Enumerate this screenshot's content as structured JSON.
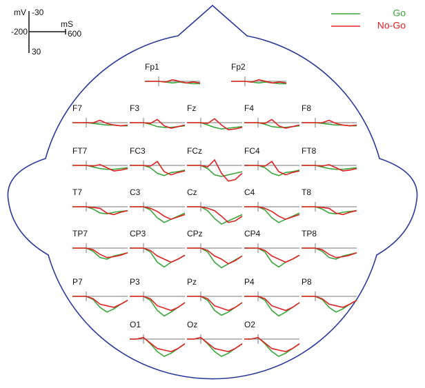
{
  "chart_data": {
    "type": "erp-topo",
    "scale": {
      "y_label": "mV",
      "x_label": "mS",
      "ylim": [
        -30,
        30
      ],
      "xlim": [
        -200,
        600
      ]
    },
    "x": [
      -200,
      -100,
      0,
      100,
      200,
      300,
      400,
      500,
      600
    ],
    "series": [
      {
        "name": "Go",
        "color": "#3aa63a",
        "key": "go"
      },
      {
        "name": "No-Go",
        "color": "#e02020",
        "key": "nogo"
      }
    ],
    "electrodes": [
      {
        "name": "Fp1",
        "go": [
          0,
          0,
          0,
          1,
          2,
          1,
          2,
          3,
          3
        ],
        "nogo": [
          0,
          0,
          0,
          1,
          -2,
          0,
          2,
          1,
          2
        ]
      },
      {
        "name": "Fp2",
        "go": [
          0,
          0,
          0,
          1,
          2,
          1,
          2,
          3,
          3
        ],
        "nogo": [
          0,
          0,
          0,
          1,
          -2,
          0,
          2,
          1,
          2
        ]
      },
      {
        "name": "F7",
        "go": [
          0,
          0,
          0,
          1,
          2,
          3,
          3,
          4,
          4
        ],
        "nogo": [
          0,
          0,
          0,
          0,
          -3,
          1,
          3,
          4,
          3
        ]
      },
      {
        "name": "F3",
        "go": [
          0,
          0,
          0,
          2,
          5,
          6,
          6,
          5,
          4
        ],
        "nogo": [
          0,
          0,
          0,
          1,
          -4,
          4,
          7,
          5,
          3
        ]
      },
      {
        "name": "Fz",
        "go": [
          0,
          0,
          0,
          3,
          6,
          8,
          7,
          6,
          5
        ],
        "nogo": [
          0,
          0,
          0,
          1,
          -5,
          3,
          9,
          8,
          6
        ]
      },
      {
        "name": "F4",
        "go": [
          0,
          0,
          0,
          2,
          5,
          6,
          6,
          5,
          4
        ],
        "nogo": [
          0,
          0,
          0,
          1,
          -4,
          4,
          7,
          5,
          3
        ]
      },
      {
        "name": "F8",
        "go": [
          0,
          0,
          0,
          1,
          2,
          3,
          3,
          4,
          4
        ],
        "nogo": [
          0,
          0,
          0,
          0,
          -3,
          1,
          3,
          4,
          3
        ]
      },
      {
        "name": "FT7",
        "go": [
          0,
          0,
          0,
          2,
          4,
          5,
          5,
          4,
          3
        ],
        "nogo": [
          0,
          0,
          0,
          1,
          -1,
          3,
          7,
          6,
          4
        ]
      },
      {
        "name": "FC3",
        "go": [
          0,
          0,
          0,
          3,
          10,
          13,
          9,
          8,
          6
        ],
        "nogo": [
          0,
          0,
          0,
          1,
          -5,
          8,
          12,
          9,
          7
        ]
      },
      {
        "name": "FCz",
        "go": [
          0,
          0,
          0,
          4,
          12,
          14,
          12,
          10,
          8
        ],
        "nogo": [
          0,
          0,
          0,
          2,
          -7,
          10,
          20,
          18,
          10
        ]
      },
      {
        "name": "FC4",
        "go": [
          0,
          0,
          0,
          3,
          10,
          13,
          9,
          8,
          6
        ],
        "nogo": [
          0,
          0,
          0,
          1,
          -5,
          8,
          12,
          9,
          7
        ]
      },
      {
        "name": "FT8",
        "go": [
          0,
          0,
          0,
          2,
          4,
          5,
          5,
          4,
          3
        ],
        "nogo": [
          0,
          0,
          0,
          1,
          -1,
          3,
          7,
          6,
          4
        ]
      },
      {
        "name": "T7",
        "go": [
          0,
          0,
          0,
          3,
          8,
          9,
          7,
          6,
          5
        ],
        "nogo": [
          0,
          0,
          0,
          1,
          2,
          8,
          10,
          7,
          5
        ]
      },
      {
        "name": "C3",
        "go": [
          0,
          0,
          0,
          4,
          14,
          20,
          16,
          12,
          8
        ],
        "nogo": [
          0,
          0,
          0,
          2,
          6,
          12,
          16,
          13,
          10
        ]
      },
      {
        "name": "Cz",
        "go": [
          0,
          0,
          0,
          5,
          15,
          22,
          18,
          14,
          10
        ],
        "nogo": [
          0,
          0,
          0,
          2,
          5,
          12,
          20,
          18,
          12
        ]
      },
      {
        "name": "C4",
        "go": [
          0,
          0,
          0,
          4,
          14,
          20,
          16,
          12,
          8
        ],
        "nogo": [
          0,
          0,
          0,
          2,
          6,
          12,
          16,
          13,
          10
        ]
      },
      {
        "name": "T8",
        "go": [
          0,
          0,
          0,
          3,
          8,
          9,
          7,
          6,
          5
        ],
        "nogo": [
          0,
          0,
          0,
          1,
          2,
          8,
          10,
          7,
          5
        ]
      },
      {
        "name": "TP7",
        "go": [
          0,
          0,
          0,
          4,
          12,
          14,
          10,
          8,
          6
        ],
        "nogo": [
          0,
          0,
          0,
          2,
          8,
          12,
          11,
          9,
          6
        ]
      },
      {
        "name": "CP3",
        "go": [
          0,
          0,
          0,
          5,
          18,
          24,
          18,
          14,
          9
        ],
        "nogo": [
          0,
          0,
          0,
          3,
          10,
          14,
          18,
          14,
          9
        ]
      },
      {
        "name": "CPz",
        "go": [
          0,
          0,
          0,
          5,
          18,
          25,
          20,
          15,
          10
        ],
        "nogo": [
          0,
          0,
          0,
          3,
          10,
          14,
          20,
          16,
          10
        ]
      },
      {
        "name": "CP4",
        "go": [
          0,
          0,
          0,
          5,
          18,
          24,
          18,
          14,
          9
        ],
        "nogo": [
          0,
          0,
          0,
          3,
          10,
          14,
          18,
          14,
          9
        ]
      },
      {
        "name": "TP8",
        "go": [
          0,
          0,
          0,
          4,
          12,
          14,
          10,
          8,
          6
        ],
        "nogo": [
          0,
          0,
          0,
          2,
          8,
          12,
          11,
          9,
          6
        ]
      },
      {
        "name": "P7",
        "go": [
          0,
          0,
          0,
          4,
          14,
          20,
          16,
          10,
          5
        ],
        "nogo": [
          0,
          0,
          0,
          3,
          10,
          12,
          14,
          10,
          5
        ]
      },
      {
        "name": "P3",
        "go": [
          0,
          0,
          0,
          5,
          18,
          25,
          20,
          14,
          8
        ],
        "nogo": [
          0,
          0,
          0,
          3,
          12,
          15,
          18,
          14,
          8
        ]
      },
      {
        "name": "Pz",
        "go": [
          0,
          0,
          0,
          5,
          18,
          24,
          20,
          14,
          8
        ],
        "nogo": [
          0,
          0,
          0,
          3,
          12,
          15,
          18,
          14,
          8
        ]
      },
      {
        "name": "P4",
        "go": [
          0,
          0,
          0,
          5,
          18,
          25,
          20,
          14,
          8
        ],
        "nogo": [
          0,
          0,
          0,
          3,
          12,
          15,
          18,
          14,
          8
        ]
      },
      {
        "name": "P8",
        "go": [
          0,
          0,
          0,
          4,
          14,
          20,
          16,
          10,
          5
        ],
        "nogo": [
          0,
          0,
          0,
          3,
          10,
          12,
          14,
          10,
          5
        ]
      },
      {
        "name": "O1",
        "go": [
          0,
          0,
          -2,
          6,
          16,
          22,
          18,
          12,
          6
        ],
        "nogo": [
          0,
          0,
          -2,
          5,
          12,
          14,
          16,
          12,
          6
        ]
      },
      {
        "name": "Oz",
        "go": [
          0,
          0,
          -2,
          6,
          16,
          22,
          18,
          12,
          6
        ],
        "nogo": [
          0,
          0,
          -2,
          5,
          12,
          14,
          16,
          12,
          6
        ]
      },
      {
        "name": "O2",
        "go": [
          0,
          0,
          -2,
          6,
          16,
          22,
          18,
          12,
          6
        ],
        "nogo": [
          0,
          0,
          -2,
          5,
          12,
          14,
          16,
          12,
          6
        ]
      }
    ]
  }
}
